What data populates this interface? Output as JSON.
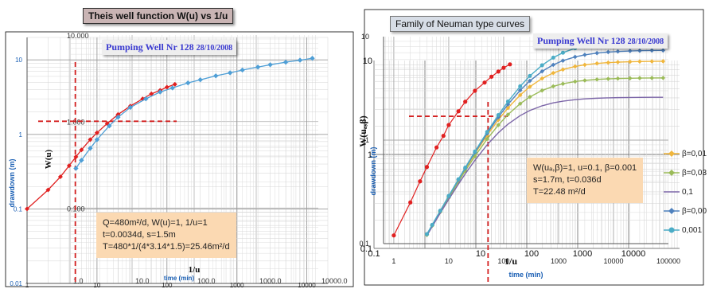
{
  "left_title": "Theis well function W(u) vs 1/u",
  "left_well": {
    "name": "Pumping Well  Nr 128",
    "date": "28/10/2008"
  },
  "left_info": [
    "Q=480m²/d,  W(u)=1, 1/u=1",
    "t=0.0034d, s=1.5m",
    "T=480*1/(4*3.14*1.5)=25.46m²/d"
  ],
  "left_wu_label": "W(u)",
  "left_invu_label": "1/u",
  "left_ylabel": "drawdown (m)",
  "left_xlabel": "time (min)",
  "right_title": "Family of Neuman type curves",
  "right_well": {
    "name": "Pumping Well  Nr 128",
    "date": "28/10/2008"
  },
  "right_info": [
    "W(uₐ,β)=1, u=0.1, β=0.001",
    " s=1.7m, t=0.036d",
    "T=22.48 m²/d"
  ],
  "right_wu_label": "W(uₐ,β)",
  "right_invu_label": "1/u",
  "right_ylabel": "drawdown (m)",
  "right_xlabel": "time (min)",
  "legend": [
    {
      "label": "β=0,01",
      "color": "#f0b63c",
      "marker": "diamond"
    },
    {
      "label": "β=0,03",
      "color": "#9bbb59",
      "marker": "diamond"
    },
    {
      "label": "0,1",
      "color": "#7c66a8",
      "marker": "none"
    },
    {
      "label": "β=0,00",
      "color": "#4f81bd",
      "marker": "diamond"
    },
    {
      "label": "0,001",
      "color": "#4bacc6",
      "marker": "circle"
    }
  ],
  "chart_data": [
    {
      "type": "scatter",
      "title": "Theis well function W(u) vs 1/u",
      "xlabel": "time (min)",
      "ylabel": "drawdown (m)",
      "x_scale": "log",
      "y_scale": "log",
      "xlim": [
        1,
        20000
      ],
      "ylim": [
        0.01,
        20
      ],
      "x_ticks": [
        "1",
        "10",
        "100",
        "1000",
        "10000"
      ],
      "y_ticks": [
        "0.01",
        "0.1",
        "1",
        "10"
      ],
      "overlay_x_ticks": [
        "1.0",
        "10.0",
        "100.0",
        "1000.0",
        "10000.0"
      ],
      "overlay_y_ticks": [
        "0.010",
        "0.100",
        "1.000",
        "10.000"
      ],
      "match_point": {
        "t_min": 4.9,
        "s_m": 1.5
      },
      "series": [
        {
          "color": "#e02020",
          "x": [
            1,
            2,
            3,
            4,
            5,
            6,
            8,
            10,
            14,
            20,
            30,
            45,
            60,
            80,
            100,
            130
          ],
          "y": [
            0.1,
            0.18,
            0.27,
            0.38,
            0.5,
            0.62,
            0.85,
            1.05,
            1.4,
            1.85,
            2.4,
            3.0,
            3.5,
            3.9,
            4.3,
            4.7
          ]
        },
        {
          "color": "#4f9fd6",
          "x": [
            5,
            6,
            8,
            10,
            15,
            20,
            30,
            50,
            80,
            120,
            200,
            300,
            500,
            800,
            1200,
            2000,
            3000,
            5000,
            8000,
            12000
          ],
          "y": [
            0.35,
            0.45,
            0.65,
            0.85,
            1.3,
            1.7,
            2.3,
            3.0,
            3.7,
            4.2,
            4.9,
            5.4,
            6.1,
            6.7,
            7.3,
            8.0,
            8.6,
            9.3,
            9.9,
            10.5
          ]
        }
      ]
    },
    {
      "type": "line",
      "title": "Family of Neuman type curves",
      "xlabel": "time (min)",
      "ylabel": "drawdown (m)",
      "x_scale": "log",
      "y_scale": "log",
      "xlim": [
        0.65,
        100000
      ],
      "ylim": [
        0.1,
        10
      ],
      "x_ticks": [
        "1",
        "10",
        "100",
        "1000",
        "10000",
        "100000"
      ],
      "y_ticks": [
        "0.1",
        "1",
        "10"
      ],
      "overlay_x_ticks": [
        "0.1",
        "10",
        "100",
        "1000",
        "10000"
      ],
      "overlay_y_ticks": [
        "0.1",
        "1",
        "10"
      ],
      "match_point": {
        "t_min": 52,
        "s_m": 1.7
      },
      "measured": {
        "color": "#e02020",
        "x": [
          1,
          2,
          3,
          4,
          6,
          8,
          10,
          15,
          20,
          30,
          45,
          60,
          80,
          100,
          130
        ],
        "y": [
          0.12,
          0.25,
          0.4,
          0.55,
          0.85,
          1.1,
          1.4,
          1.9,
          2.35,
          3.0,
          3.6,
          4.1,
          4.6,
          5.0,
          5.4
        ]
      },
      "series": [
        {
          "name": "β=0,01",
          "color": "#f0b63c",
          "plateau": 5.8
        },
        {
          "name": "β=0,03",
          "color": "#9bbb59",
          "plateau": 4.0
        },
        {
          "name": "0,1",
          "color": "#7c66a8",
          "plateau": 2.6
        },
        {
          "name": "β=0,00",
          "color": "#4f81bd",
          "plateau": 7.4
        },
        {
          "name": "0,001",
          "color": "#4bacc6",
          "plateau": 9.3
        }
      ]
    }
  ]
}
